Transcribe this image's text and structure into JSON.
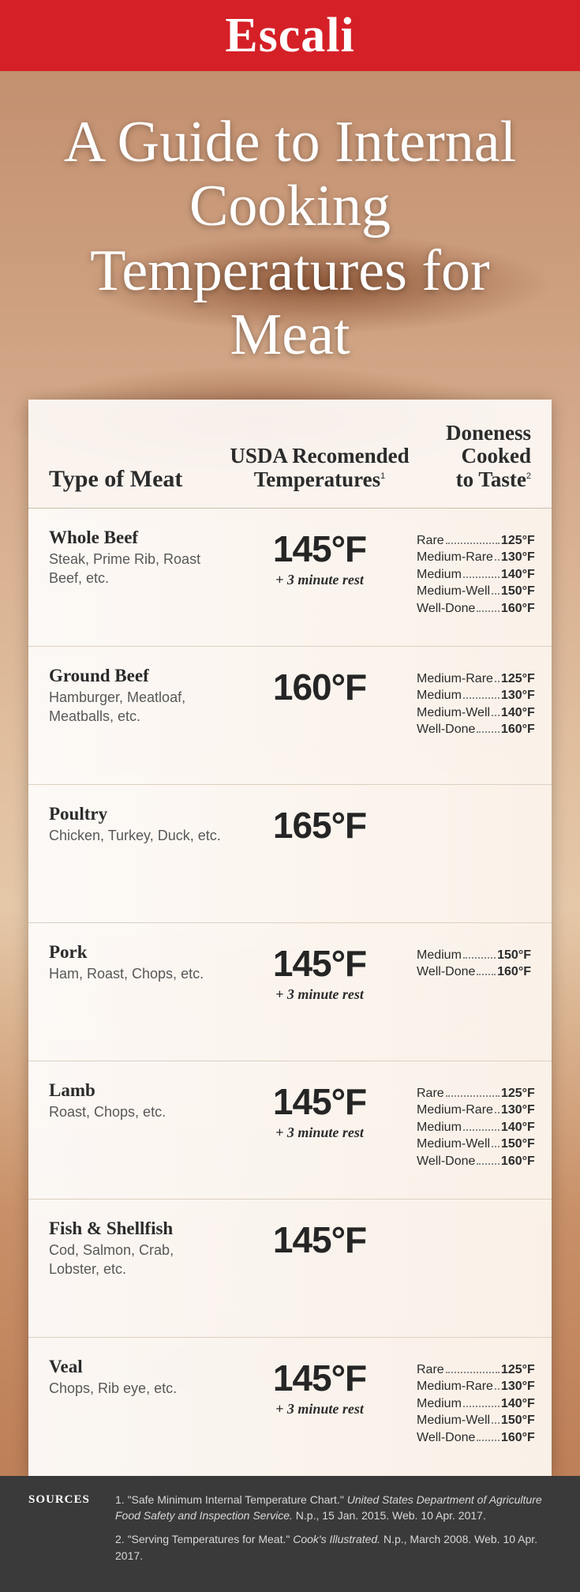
{
  "brand": "Escali",
  "header_bar_color": "#d52027",
  "title": "A Guide to Internal Cooking Temperatures for Meat",
  "columns": {
    "c1": "Type of Meat",
    "c2": "USDA Recomended Temperatures",
    "c2_sup": "1",
    "c3_line1": "Doneness",
    "c3_line2": "Cooked",
    "c3_line3": "to Taste",
    "c3_sup": "2"
  },
  "rows": [
    {
      "name": "Whole Beef",
      "sub": "Steak, Prime Rib, Roast Beef, etc.",
      "temp": "145°F",
      "note": "+ 3 minute rest",
      "doneness": [
        {
          "l": "Rare",
          "t": "125°F"
        },
        {
          "l": "Medium-Rare",
          "t": "130°F"
        },
        {
          "l": "Medium",
          "t": "140°F"
        },
        {
          "l": "Medium-Well",
          "t": "150°F"
        },
        {
          "l": "Well-Done",
          "t": "160°F"
        }
      ]
    },
    {
      "name": "Ground Beef",
      "sub": "Hamburger, Meatloaf, Meatballs, etc.",
      "temp": "160°F",
      "note": "",
      "doneness": [
        {
          "l": "Medium-Rare",
          "t": "125°F"
        },
        {
          "l": "Medium",
          "t": "130°F"
        },
        {
          "l": "Medium-Well",
          "t": "140°F"
        },
        {
          "l": "Well-Done",
          "t": "160°F"
        }
      ]
    },
    {
      "name": "Poultry",
      "sub": "Chicken, Turkey, Duck, etc.",
      "temp": "165°F",
      "note": "",
      "doneness": []
    },
    {
      "name": "Pork",
      "sub": "Ham, Roast, Chops, etc.",
      "temp": "145°F",
      "note": "+ 3 minute rest",
      "doneness": [
        {
          "l": "Medium",
          "t": "150°F"
        },
        {
          "l": "Well-Done",
          "t": "160°F"
        }
      ]
    },
    {
      "name": "Lamb",
      "sub": "Roast, Chops, etc.",
      "temp": "145°F",
      "note": "+ 3 minute rest",
      "doneness": [
        {
          "l": "Rare",
          "t": "125°F"
        },
        {
          "l": "Medium-Rare",
          "t": "130°F"
        },
        {
          "l": "Medium",
          "t": "140°F"
        },
        {
          "l": "Medium-Well",
          "t": "150°F"
        },
        {
          "l": "Well-Done",
          "t": "160°F"
        }
      ]
    },
    {
      "name": "Fish & Shellfish",
      "sub": "Cod, Salmon, Crab, Lobster, etc.",
      "temp": "145°F",
      "note": "",
      "doneness": []
    },
    {
      "name": "Veal",
      "sub": "Chops, Rib eye, etc.",
      "temp": "145°F",
      "note": "+ 3 minute rest",
      "doneness": [
        {
          "l": "Rare",
          "t": "125°F"
        },
        {
          "l": "Medium-Rare",
          "t": "130°F"
        },
        {
          "l": "Medium",
          "t": "140°F"
        },
        {
          "l": "Medium-Well",
          "t": "150°F"
        },
        {
          "l": "Well-Done",
          "t": "160°F"
        }
      ]
    }
  ],
  "sources_label": "SOURCES",
  "sources": [
    {
      "n": "1.",
      "text": "\"Safe Minimum Internal Temperature Chart.\" ",
      "ital": "United States Department of Agriculture Food Safety and Inspection Service.",
      "tail": " N.p., 15 Jan. 2015. Web. 10 Apr. 2017."
    },
    {
      "n": "2.",
      "text": "\"Serving Temperatures for Meat.\" ",
      "ital": "Cook's Illustrated.",
      "tail": " N.p., March 2008. Web. 10 Apr. 2017."
    }
  ]
}
